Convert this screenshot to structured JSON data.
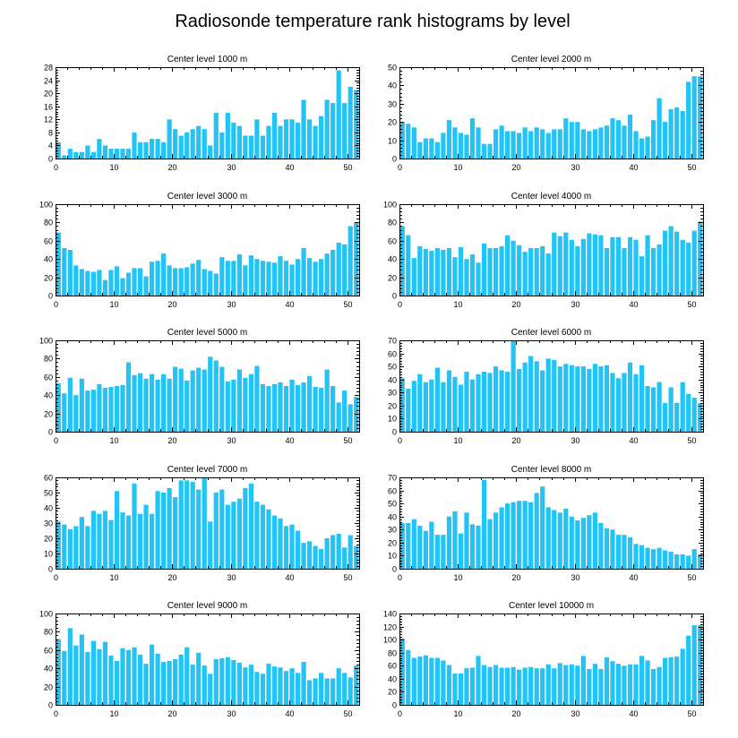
{
  "figure": {
    "title": "Radiosonde temperature rank histograms by level",
    "bar_color": "#22c3f5"
  },
  "chart_data": [
    {
      "type": "bar",
      "title": "Center level 1000 m",
      "x": [
        0,
        1,
        2,
        3,
        4,
        5,
        6,
        7,
        8,
        9,
        10,
        11,
        12,
        13,
        14,
        15,
        16,
        17,
        18,
        19,
        20,
        21,
        22,
        23,
        24,
        25,
        26,
        27,
        28,
        29,
        30,
        31,
        32,
        33,
        34,
        35,
        36,
        37,
        38,
        39,
        40,
        41,
        42,
        43,
        44,
        45,
        46,
        47,
        48,
        49,
        50,
        51
      ],
      "values": [
        5,
        1,
        3,
        2,
        2,
        4,
        2,
        6,
        4,
        3,
        3,
        3,
        3,
        8,
        5,
        5,
        6,
        6,
        5,
        12,
        9,
        7,
        8,
        9,
        10,
        9,
        4,
        14,
        8,
        14,
        11,
        10,
        7,
        7,
        12,
        7,
        10,
        14,
        10,
        12,
        12,
        11,
        18,
        12,
        10,
        13,
        18,
        17,
        27,
        17,
        22,
        21
      ],
      "xlim": [
        0,
        52
      ],
      "ylim": [
        0,
        28
      ],
      "xticks": [
        0,
        10,
        20,
        30,
        40,
        50
      ],
      "yticks": [
        0,
        4,
        8,
        12,
        16,
        20,
        24,
        28
      ]
    },
    {
      "type": "bar",
      "title": "Center level 2000 m",
      "x": [
        0,
        1,
        2,
        3,
        4,
        5,
        6,
        7,
        8,
        9,
        10,
        11,
        12,
        13,
        14,
        15,
        16,
        17,
        18,
        19,
        20,
        21,
        22,
        23,
        24,
        25,
        26,
        27,
        28,
        29,
        30,
        31,
        32,
        33,
        34,
        35,
        36,
        37,
        38,
        39,
        40,
        41,
        42,
        43,
        44,
        45,
        46,
        47,
        48,
        49,
        50,
        51
      ],
      "values": [
        20,
        19,
        17,
        9,
        11,
        11,
        9,
        14,
        21,
        17,
        14,
        13,
        22,
        17,
        8,
        8,
        16,
        18,
        15,
        15,
        14,
        17,
        15,
        17,
        16,
        14,
        16,
        16,
        22,
        20,
        20,
        16,
        15,
        16,
        17,
        18,
        22,
        21,
        18,
        24,
        15,
        11,
        12,
        21,
        33,
        20,
        27,
        28,
        26,
        42,
        45,
        45
      ],
      "xlim": [
        0,
        52
      ],
      "ylim": [
        0,
        50
      ],
      "xticks": [
        0,
        10,
        20,
        30,
        40,
        50
      ],
      "yticks": [
        0,
        10,
        20,
        30,
        40,
        50
      ]
    },
    {
      "type": "bar",
      "title": "Center level 3000 m",
      "x": [
        0,
        1,
        2,
        3,
        4,
        5,
        6,
        7,
        8,
        9,
        10,
        11,
        12,
        13,
        14,
        15,
        16,
        17,
        18,
        19,
        20,
        21,
        22,
        23,
        24,
        25,
        26,
        27,
        28,
        29,
        30,
        31,
        32,
        33,
        34,
        35,
        36,
        37,
        38,
        39,
        40,
        41,
        42,
        43,
        44,
        45,
        46,
        47,
        48,
        49,
        50,
        51
      ],
      "values": [
        69,
        52,
        50,
        33,
        29,
        27,
        26,
        28,
        17,
        28,
        32,
        19,
        25,
        30,
        30,
        21,
        37,
        38,
        46,
        33,
        30,
        30,
        31,
        35,
        39,
        29,
        27,
        24,
        42,
        38,
        38,
        45,
        33,
        44,
        40,
        38,
        37,
        36,
        43,
        38,
        34,
        40,
        52,
        41,
        37,
        40,
        46,
        50,
        58,
        56,
        76,
        80
      ],
      "xlim": [
        0,
        52
      ],
      "ylim": [
        0,
        100
      ],
      "xticks": [
        0,
        10,
        20,
        30,
        40,
        50
      ],
      "yticks": [
        0,
        20,
        40,
        60,
        80,
        100
      ]
    },
    {
      "type": "bar",
      "title": "Center level 4000 m",
      "x": [
        0,
        1,
        2,
        3,
        4,
        5,
        6,
        7,
        8,
        9,
        10,
        11,
        12,
        13,
        14,
        15,
        16,
        17,
        18,
        19,
        20,
        21,
        22,
        23,
        24,
        25,
        26,
        27,
        28,
        29,
        30,
        31,
        32,
        33,
        34,
        35,
        36,
        37,
        38,
        39,
        40,
        41,
        42,
        43,
        44,
        45,
        46,
        47,
        48,
        49,
        50,
        51
      ],
      "values": [
        76,
        66,
        41,
        54,
        51,
        49,
        52,
        50,
        52,
        42,
        53,
        40,
        45,
        36,
        57,
        52,
        52,
        54,
        66,
        60,
        55,
        48,
        52,
        52,
        54,
        46,
        69,
        65,
        69,
        61,
        54,
        62,
        68,
        67,
        66,
        52,
        64,
        64,
        52,
        64,
        61,
        43,
        66,
        52,
        56,
        71,
        76,
        70,
        61,
        58,
        71,
        81
      ],
      "xlim": [
        0,
        52
      ],
      "ylim": [
        0,
        100
      ],
      "xticks": [
        0,
        10,
        20,
        30,
        40,
        50
      ],
      "yticks": [
        0,
        20,
        40,
        60,
        80,
        100
      ]
    },
    {
      "type": "bar",
      "title": "Center level 5000 m",
      "x": [
        0,
        1,
        2,
        3,
        4,
        5,
        6,
        7,
        8,
        9,
        10,
        11,
        12,
        13,
        14,
        15,
        16,
        17,
        18,
        19,
        20,
        21,
        22,
        23,
        24,
        25,
        26,
        27,
        28,
        29,
        30,
        31,
        32,
        33,
        34,
        35,
        36,
        37,
        38,
        39,
        40,
        41,
        42,
        43,
        44,
        45,
        46,
        47,
        48,
        49,
        50,
        51
      ],
      "values": [
        53,
        42,
        59,
        40,
        58,
        45,
        46,
        52,
        48,
        49,
        50,
        51,
        76,
        62,
        64,
        58,
        63,
        57,
        63,
        58,
        71,
        69,
        56,
        67,
        70,
        68,
        82,
        78,
        71,
        55,
        57,
        68,
        59,
        63,
        72,
        52,
        50,
        52,
        54,
        50,
        57,
        51,
        54,
        61,
        49,
        48,
        68,
        50,
        32,
        45,
        30,
        38
      ],
      "xlim": [
        0,
        52
      ],
      "ylim": [
        0,
        100
      ],
      "xticks": [
        0,
        10,
        20,
        30,
        40,
        50
      ],
      "yticks": [
        0,
        20,
        40,
        60,
        80,
        100
      ]
    },
    {
      "type": "bar",
      "title": "Center level 6000 m",
      "x": [
        0,
        1,
        2,
        3,
        4,
        5,
        6,
        7,
        8,
        9,
        10,
        11,
        12,
        13,
        14,
        15,
        16,
        17,
        18,
        19,
        20,
        21,
        22,
        23,
        24,
        25,
        26,
        27,
        28,
        29,
        30,
        31,
        32,
        33,
        34,
        35,
        36,
        37,
        38,
        39,
        40,
        41,
        42,
        43,
        44,
        45,
        46,
        47,
        48,
        49,
        50,
        51
      ],
      "values": [
        41,
        33,
        39,
        44,
        38,
        40,
        49,
        38,
        47,
        42,
        36,
        46,
        40,
        44,
        46,
        45,
        50,
        47,
        46,
        70,
        48,
        53,
        58,
        54,
        47,
        56,
        55,
        50,
        52,
        51,
        50,
        50,
        48,
        52,
        50,
        51,
        45,
        41,
        45,
        53,
        44,
        51,
        35,
        34,
        38,
        22,
        34,
        22,
        38,
        29,
        26,
        22
      ],
      "xlim": [
        0,
        52
      ],
      "ylim": [
        0,
        70
      ],
      "xticks": [
        0,
        10,
        20,
        30,
        40,
        50
      ],
      "yticks": [
        0,
        10,
        20,
        30,
        40,
        50,
        60,
        70
      ]
    },
    {
      "type": "bar",
      "title": "Center level 7000 m",
      "x": [
        0,
        1,
        2,
        3,
        4,
        5,
        6,
        7,
        8,
        9,
        10,
        11,
        12,
        13,
        14,
        15,
        16,
        17,
        18,
        19,
        20,
        21,
        22,
        23,
        24,
        25,
        26,
        27,
        28,
        29,
        30,
        31,
        32,
        33,
        34,
        35,
        36,
        37,
        38,
        39,
        40,
        41,
        42,
        43,
        44,
        45,
        46,
        47,
        48,
        49,
        50,
        51
      ],
      "values": [
        31,
        29,
        26,
        28,
        34,
        28,
        38,
        36,
        38,
        32,
        51,
        37,
        35,
        56,
        36,
        42,
        36,
        51,
        50,
        53,
        47,
        58,
        58,
        57,
        52,
        60,
        31,
        50,
        52,
        42,
        44,
        46,
        53,
        56,
        44,
        42,
        39,
        35,
        33,
        28,
        29,
        25,
        17,
        18,
        15,
        13,
        20,
        22,
        23,
        14,
        22,
        15
      ],
      "xlim": [
        0,
        52
      ],
      "ylim": [
        0,
        60
      ],
      "xticks": [
        0,
        10,
        20,
        30,
        40,
        50
      ],
      "yticks": [
        0,
        10,
        20,
        30,
        40,
        50,
        60
      ]
    },
    {
      "type": "bar",
      "title": "Center level 8000 m",
      "x": [
        0,
        1,
        2,
        3,
        4,
        5,
        6,
        7,
        8,
        9,
        10,
        11,
        12,
        13,
        14,
        15,
        16,
        17,
        18,
        19,
        20,
        21,
        22,
        23,
        24,
        25,
        26,
        27,
        28,
        29,
        30,
        31,
        32,
        33,
        34,
        35,
        36,
        37,
        38,
        39,
        40,
        41,
        42,
        43,
        44,
        45,
        46,
        47,
        48,
        49,
        50,
        51
      ],
      "values": [
        35,
        35,
        38,
        33,
        29,
        36,
        26,
        26,
        40,
        44,
        27,
        43,
        34,
        33,
        68,
        38,
        43,
        47,
        50,
        51,
        52,
        52,
        51,
        58,
        63,
        47,
        45,
        43,
        46,
        40,
        37,
        39,
        41,
        43,
        35,
        31,
        30,
        26,
        26,
        24,
        19,
        18,
        16,
        15,
        16,
        14,
        13,
        11,
        11,
        10,
        15,
        11
      ],
      "xlim": [
        0,
        52
      ],
      "ylim": [
        0,
        70
      ],
      "xticks": [
        0,
        10,
        20,
        30,
        40,
        50
      ],
      "yticks": [
        0,
        10,
        20,
        30,
        40,
        50,
        60,
        70
      ]
    },
    {
      "type": "bar",
      "title": "Center level 9000 m",
      "x": [
        0,
        1,
        2,
        3,
        4,
        5,
        6,
        7,
        8,
        9,
        10,
        11,
        12,
        13,
        14,
        15,
        16,
        17,
        18,
        19,
        20,
        21,
        22,
        23,
        24,
        25,
        26,
        27,
        28,
        29,
        30,
        31,
        32,
        33,
        34,
        35,
        36,
        37,
        38,
        39,
        40,
        41,
        42,
        43,
        44,
        45,
        46,
        47,
        48,
        49,
        50,
        51
      ],
      "values": [
        72,
        59,
        84,
        65,
        77,
        58,
        70,
        61,
        69,
        54,
        48,
        62,
        60,
        63,
        55,
        45,
        66,
        56,
        47,
        48,
        50,
        55,
        63,
        44,
        57,
        43,
        34,
        50,
        51,
        52,
        49,
        46,
        41,
        44,
        36,
        34,
        45,
        42,
        41,
        37,
        40,
        35,
        47,
        27,
        29,
        35,
        29,
        29,
        40,
        35,
        30,
        43
      ],
      "xlim": [
        0,
        52
      ],
      "ylim": [
        0,
        100
      ],
      "xticks": [
        0,
        10,
        20,
        30,
        40,
        50
      ],
      "yticks": [
        0,
        20,
        40,
        60,
        80,
        100
      ]
    },
    {
      "type": "bar",
      "title": "Center level 10000 m",
      "x": [
        0,
        1,
        2,
        3,
        4,
        5,
        6,
        7,
        8,
        9,
        10,
        11,
        12,
        13,
        14,
        15,
        16,
        17,
        18,
        19,
        20,
        21,
        22,
        23,
        24,
        25,
        26,
        27,
        28,
        29,
        30,
        31,
        32,
        33,
        34,
        35,
        36,
        37,
        38,
        39,
        40,
        41,
        42,
        43,
        44,
        45,
        46,
        47,
        48,
        49,
        50,
        51
      ],
      "values": [
        102,
        84,
        72,
        74,
        76,
        72,
        72,
        68,
        61,
        48,
        48,
        56,
        57,
        75,
        61,
        58,
        61,
        57,
        57,
        58,
        54,
        57,
        58,
        56,
        56,
        62,
        56,
        64,
        61,
        62,
        60,
        75,
        55,
        63,
        55,
        73,
        67,
        63,
        60,
        62,
        62,
        75,
        68,
        55,
        58,
        72,
        73,
        74,
        86,
        106,
        122,
        122
      ],
      "xlim": [
        0,
        52
      ],
      "ylim": [
        0,
        140
      ],
      "xticks": [
        0,
        10,
        20,
        30,
        40,
        50
      ],
      "yticks": [
        0,
        20,
        40,
        60,
        80,
        100,
        120,
        140
      ]
    }
  ]
}
